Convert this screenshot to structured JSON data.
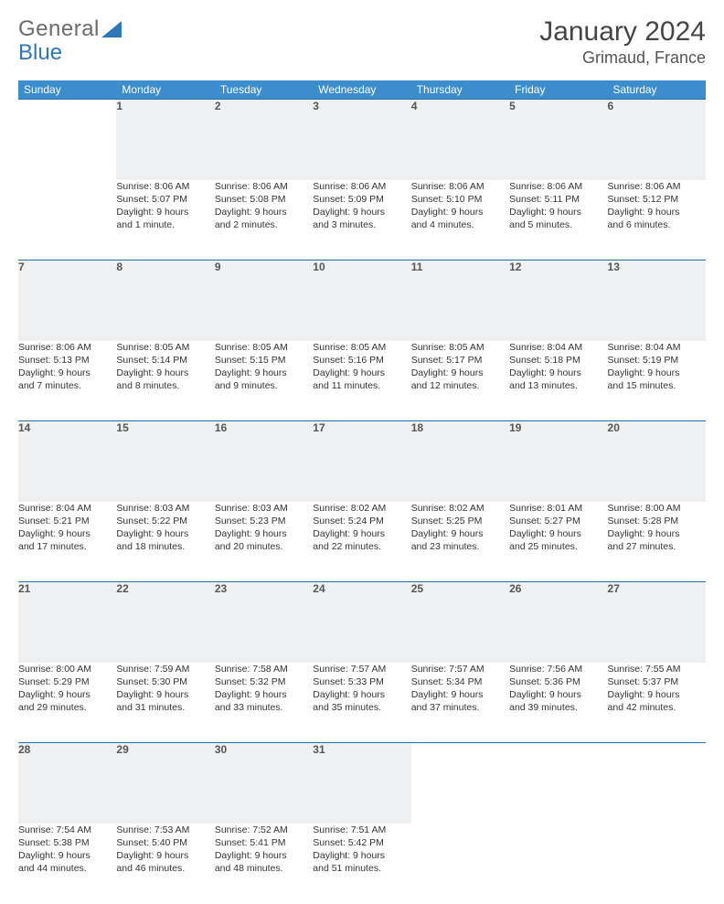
{
  "brand": {
    "part1": "General",
    "part2": "Blue"
  },
  "title": "January 2024",
  "location": "Grimaud, France",
  "colors": {
    "header_bg": "#3c8dcc",
    "header_text": "#ffffff",
    "daynum_bg": "#eef0f1",
    "rule": "#2e6da4",
    "body_text": "#333333",
    "brand_gray": "#6b6b6b",
    "brand_blue": "#2e77b8"
  },
  "dayHeaders": [
    "Sunday",
    "Monday",
    "Tuesday",
    "Wednesday",
    "Thursday",
    "Friday",
    "Saturday"
  ],
  "weeks": [
    [
      null,
      {
        "n": "1",
        "sr": "Sunrise: 8:06 AM",
        "ss": "Sunset: 5:07 PM",
        "d1": "Daylight: 9 hours",
        "d2": "and 1 minute."
      },
      {
        "n": "2",
        "sr": "Sunrise: 8:06 AM",
        "ss": "Sunset: 5:08 PM",
        "d1": "Daylight: 9 hours",
        "d2": "and 2 minutes."
      },
      {
        "n": "3",
        "sr": "Sunrise: 8:06 AM",
        "ss": "Sunset: 5:09 PM",
        "d1": "Daylight: 9 hours",
        "d2": "and 3 minutes."
      },
      {
        "n": "4",
        "sr": "Sunrise: 8:06 AM",
        "ss": "Sunset: 5:10 PM",
        "d1": "Daylight: 9 hours",
        "d2": "and 4 minutes."
      },
      {
        "n": "5",
        "sr": "Sunrise: 8:06 AM",
        "ss": "Sunset: 5:11 PM",
        "d1": "Daylight: 9 hours",
        "d2": "and 5 minutes."
      },
      {
        "n": "6",
        "sr": "Sunrise: 8:06 AM",
        "ss": "Sunset: 5:12 PM",
        "d1": "Daylight: 9 hours",
        "d2": "and 6 minutes."
      }
    ],
    [
      {
        "n": "7",
        "sr": "Sunrise: 8:06 AM",
        "ss": "Sunset: 5:13 PM",
        "d1": "Daylight: 9 hours",
        "d2": "and 7 minutes."
      },
      {
        "n": "8",
        "sr": "Sunrise: 8:05 AM",
        "ss": "Sunset: 5:14 PM",
        "d1": "Daylight: 9 hours",
        "d2": "and 8 minutes."
      },
      {
        "n": "9",
        "sr": "Sunrise: 8:05 AM",
        "ss": "Sunset: 5:15 PM",
        "d1": "Daylight: 9 hours",
        "d2": "and 9 minutes."
      },
      {
        "n": "10",
        "sr": "Sunrise: 8:05 AM",
        "ss": "Sunset: 5:16 PM",
        "d1": "Daylight: 9 hours",
        "d2": "and 11 minutes."
      },
      {
        "n": "11",
        "sr": "Sunrise: 8:05 AM",
        "ss": "Sunset: 5:17 PM",
        "d1": "Daylight: 9 hours",
        "d2": "and 12 minutes."
      },
      {
        "n": "12",
        "sr": "Sunrise: 8:04 AM",
        "ss": "Sunset: 5:18 PM",
        "d1": "Daylight: 9 hours",
        "d2": "and 13 minutes."
      },
      {
        "n": "13",
        "sr": "Sunrise: 8:04 AM",
        "ss": "Sunset: 5:19 PM",
        "d1": "Daylight: 9 hours",
        "d2": "and 15 minutes."
      }
    ],
    [
      {
        "n": "14",
        "sr": "Sunrise: 8:04 AM",
        "ss": "Sunset: 5:21 PM",
        "d1": "Daylight: 9 hours",
        "d2": "and 17 minutes."
      },
      {
        "n": "15",
        "sr": "Sunrise: 8:03 AM",
        "ss": "Sunset: 5:22 PM",
        "d1": "Daylight: 9 hours",
        "d2": "and 18 minutes."
      },
      {
        "n": "16",
        "sr": "Sunrise: 8:03 AM",
        "ss": "Sunset: 5:23 PM",
        "d1": "Daylight: 9 hours",
        "d2": "and 20 minutes."
      },
      {
        "n": "17",
        "sr": "Sunrise: 8:02 AM",
        "ss": "Sunset: 5:24 PM",
        "d1": "Daylight: 9 hours",
        "d2": "and 22 minutes."
      },
      {
        "n": "18",
        "sr": "Sunrise: 8:02 AM",
        "ss": "Sunset: 5:25 PM",
        "d1": "Daylight: 9 hours",
        "d2": "and 23 minutes."
      },
      {
        "n": "19",
        "sr": "Sunrise: 8:01 AM",
        "ss": "Sunset: 5:27 PM",
        "d1": "Daylight: 9 hours",
        "d2": "and 25 minutes."
      },
      {
        "n": "20",
        "sr": "Sunrise: 8:00 AM",
        "ss": "Sunset: 5:28 PM",
        "d1": "Daylight: 9 hours",
        "d2": "and 27 minutes."
      }
    ],
    [
      {
        "n": "21",
        "sr": "Sunrise: 8:00 AM",
        "ss": "Sunset: 5:29 PM",
        "d1": "Daylight: 9 hours",
        "d2": "and 29 minutes."
      },
      {
        "n": "22",
        "sr": "Sunrise: 7:59 AM",
        "ss": "Sunset: 5:30 PM",
        "d1": "Daylight: 9 hours",
        "d2": "and 31 minutes."
      },
      {
        "n": "23",
        "sr": "Sunrise: 7:58 AM",
        "ss": "Sunset: 5:32 PM",
        "d1": "Daylight: 9 hours",
        "d2": "and 33 minutes."
      },
      {
        "n": "24",
        "sr": "Sunrise: 7:57 AM",
        "ss": "Sunset: 5:33 PM",
        "d1": "Daylight: 9 hours",
        "d2": "and 35 minutes."
      },
      {
        "n": "25",
        "sr": "Sunrise: 7:57 AM",
        "ss": "Sunset: 5:34 PM",
        "d1": "Daylight: 9 hours",
        "d2": "and 37 minutes."
      },
      {
        "n": "26",
        "sr": "Sunrise: 7:56 AM",
        "ss": "Sunset: 5:36 PM",
        "d1": "Daylight: 9 hours",
        "d2": "and 39 minutes."
      },
      {
        "n": "27",
        "sr": "Sunrise: 7:55 AM",
        "ss": "Sunset: 5:37 PM",
        "d1": "Daylight: 9 hours",
        "d2": "and 42 minutes."
      }
    ],
    [
      {
        "n": "28",
        "sr": "Sunrise: 7:54 AM",
        "ss": "Sunset: 5:38 PM",
        "d1": "Daylight: 9 hours",
        "d2": "and 44 minutes."
      },
      {
        "n": "29",
        "sr": "Sunrise: 7:53 AM",
        "ss": "Sunset: 5:40 PM",
        "d1": "Daylight: 9 hours",
        "d2": "and 46 minutes."
      },
      {
        "n": "30",
        "sr": "Sunrise: 7:52 AM",
        "ss": "Sunset: 5:41 PM",
        "d1": "Daylight: 9 hours",
        "d2": "and 48 minutes."
      },
      {
        "n": "31",
        "sr": "Sunrise: 7:51 AM",
        "ss": "Sunset: 5:42 PM",
        "d1": "Daylight: 9 hours",
        "d2": "and 51 minutes."
      },
      null,
      null,
      null
    ]
  ]
}
